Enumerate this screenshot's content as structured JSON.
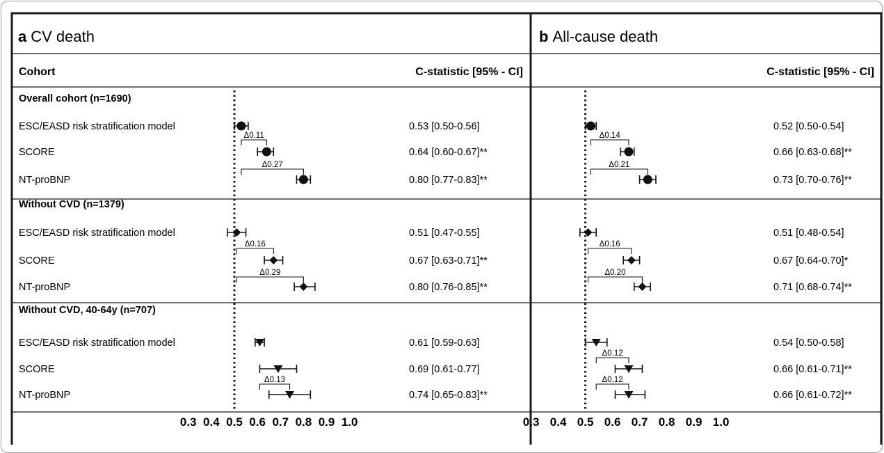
{
  "chart_data": [
    {
      "type": "forest",
      "panel_letter": "a",
      "title": "CV death",
      "header_left": "Cohort",
      "header_right": "C-statistic [95% - CI]",
      "reference_line": 0.5,
      "xlim": [
        0.3,
        1.0
      ],
      "xticks": [
        "0.3",
        "0.4",
        "0.5",
        "0.6",
        "0.7",
        "0.8",
        "0.9",
        "1.0"
      ],
      "groups": [
        {
          "label": "Overall cohort (n=1690)",
          "marker": "circle",
          "rows": [
            {
              "label": "ESC/EASD risk stratification model",
              "est": 0.53,
              "lo": 0.5,
              "hi": 0.56,
              "text": "0.53 [0.50-0.56]"
            },
            {
              "label": "SCORE",
              "est": 0.64,
              "lo": 0.6,
              "hi": 0.67,
              "text": "0.64 [0.60-0.67]**"
            },
            {
              "label": "NT-proBNP",
              "est": 0.8,
              "lo": 0.77,
              "hi": 0.83,
              "text": "0.80 [0.77-0.83]**"
            }
          ],
          "brackets": [
            {
              "label": "Δ0.11",
              "from": 0.53,
              "to": 0.64,
              "to_row": 1
            },
            {
              "label": "Δ0.27",
              "from": 0.53,
              "to": 0.8,
              "to_row": 2
            }
          ]
        },
        {
          "label": "Without CVD (n=1379)",
          "marker": "diamond",
          "rows": [
            {
              "label": "ESC/EASD risk stratification model",
              "est": 0.51,
              "lo": 0.47,
              "hi": 0.55,
              "text": "0.51 [0.47-0.55]"
            },
            {
              "label": "SCORE",
              "est": 0.67,
              "lo": 0.63,
              "hi": 0.71,
              "text": "0.67 [0.63-0.71]**"
            },
            {
              "label": "NT-proBNP",
              "est": 0.8,
              "lo": 0.76,
              "hi": 0.85,
              "text": "0.80 [0.76-0.85]**"
            }
          ],
          "brackets": [
            {
              "label": "Δ0.16",
              "from": 0.51,
              "to": 0.67,
              "to_row": 1
            },
            {
              "label": "Δ0.29",
              "from": 0.51,
              "to": 0.8,
              "to_row": 2
            }
          ]
        },
        {
          "label": "Without CVD, 40-64y (n=707)",
          "marker": "triangle",
          "rows": [
            {
              "label": "ESC/EASD risk stratification model",
              "est": 0.61,
              "lo": 0.59,
              "hi": 0.63,
              "text": "0.61 [0.59-0.63]"
            },
            {
              "label": "SCORE",
              "est": 0.69,
              "lo": 0.61,
              "hi": 0.77,
              "text": "0.69 [0.61-0.77]"
            },
            {
              "label": "NT-proBNP",
              "est": 0.74,
              "lo": 0.65,
              "hi": 0.83,
              "text": "0.74 [0.65-0.83]**"
            }
          ],
          "brackets": [
            {
              "label": "Δ0.13",
              "from": 0.61,
              "to": 0.74,
              "to_row": 2
            }
          ]
        }
      ]
    },
    {
      "type": "forest",
      "panel_letter": "b",
      "title": "All-cause death",
      "header_left": "",
      "header_right": "C-statistic [95% - CI]",
      "reference_line": 0.5,
      "xlim": [
        0.3,
        1.0
      ],
      "xticks": [
        "0.3",
        "0.4",
        "0.5",
        "0.6",
        "0.7",
        "0.8",
        "0.9",
        "1.0"
      ],
      "groups": [
        {
          "label": "",
          "marker": "circle",
          "rows": [
            {
              "label": "",
              "est": 0.52,
              "lo": 0.5,
              "hi": 0.54,
              "text": "0.52 [0.50-0.54]"
            },
            {
              "label": "",
              "est": 0.66,
              "lo": 0.63,
              "hi": 0.68,
              "text": "0.66 [0.63-0.68]**"
            },
            {
              "label": "",
              "est": 0.73,
              "lo": 0.7,
              "hi": 0.76,
              "text": "0.73 [0.70-0.76]**"
            }
          ],
          "brackets": [
            {
              "label": "Δ0.14",
              "from": 0.52,
              "to": 0.66,
              "to_row": 1
            },
            {
              "label": "Δ0.21",
              "from": 0.52,
              "to": 0.73,
              "to_row": 2
            }
          ]
        },
        {
          "label": "",
          "marker": "diamond",
          "rows": [
            {
              "label": "",
              "est": 0.51,
              "lo": 0.48,
              "hi": 0.54,
              "text": "0.51 [0.48-0.54]"
            },
            {
              "label": "",
              "est": 0.67,
              "lo": 0.64,
              "hi": 0.7,
              "text": "0.67 [0.64-0.70]*"
            },
            {
              "label": "",
              "est": 0.71,
              "lo": 0.68,
              "hi": 0.74,
              "text": "0.71 [0.68-0.74]**"
            }
          ],
          "brackets": [
            {
              "label": "Δ0.16",
              "from": 0.51,
              "to": 0.67,
              "to_row": 1
            },
            {
              "label": "Δ0.20",
              "from": 0.51,
              "to": 0.71,
              "to_row": 2
            }
          ]
        },
        {
          "label": "",
          "marker": "triangle",
          "rows": [
            {
              "label": "",
              "est": 0.54,
              "lo": 0.5,
              "hi": 0.58,
              "text": "0.54 [0.50-0.58]"
            },
            {
              "label": "",
              "est": 0.66,
              "lo": 0.61,
              "hi": 0.71,
              "text": "0.66 [0.61-0.71]**"
            },
            {
              "label": "",
              "est": 0.66,
              "lo": 0.61,
              "hi": 0.72,
              "text": "0.66 [0.61-0.72]**"
            }
          ],
          "brackets": [
            {
              "label": "Δ0.12",
              "from": 0.54,
              "to": 0.66,
              "to_row": 1
            },
            {
              "label": "Δ0.12",
              "from": 0.54,
              "to": 0.66,
              "to_row": 2
            }
          ]
        }
      ]
    }
  ]
}
